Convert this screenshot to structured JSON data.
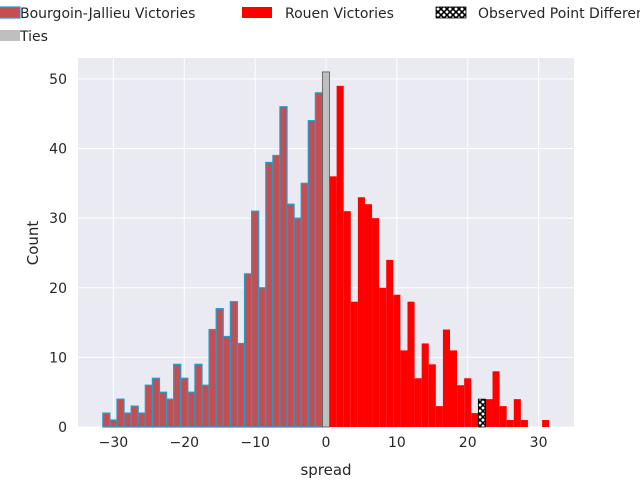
{
  "chart_data": {
    "type": "bar",
    "title": "",
    "xlabel": "spread",
    "ylabel": "Count",
    "xlim": [
      -35,
      35
    ],
    "ylim": [
      0,
      53
    ],
    "xticks": [
      -30,
      -20,
      -10,
      0,
      10,
      20,
      30
    ],
    "yticks": [
      0,
      10,
      20,
      30,
      40,
      50
    ],
    "xtick_labels": [
      "−30",
      "−20",
      "−10",
      "0",
      "10",
      "20",
      "30"
    ],
    "ytick_labels": [
      "0",
      "10",
      "20",
      "30",
      "40",
      "50"
    ],
    "grid": true,
    "legend_placement": "top",
    "colors": {
      "background": "#eaeaf2",
      "grid": "#ffffff",
      "bourgoin_fill": "#c44e52",
      "bourgoin_edge": "#1f9fd0",
      "rouen_fill": "#ff0000",
      "ties_fill": "#bfbfbf",
      "observed_fill": "#000000"
    },
    "legend": [
      {
        "label": "Bourgoin-Jallieu Victories",
        "key": "bourgoin"
      },
      {
        "label": "Rouen Victories",
        "key": "rouen"
      },
      {
        "label": "Observed Point Differential",
        "key": "observed"
      },
      {
        "label": "Ties",
        "key": "ties"
      }
    ],
    "series": [
      {
        "name": "Bourgoin-Jallieu Victories",
        "x": [
          -31,
          -30,
          -29,
          -28,
          -27,
          -26,
          -25,
          -24,
          -23,
          -22,
          -21,
          -20,
          -19,
          -18,
          -17,
          -16,
          -15,
          -14,
          -13,
          -12,
          -11,
          -10,
          -9,
          -8,
          -7,
          -6,
          -5,
          -4,
          -3,
          -2,
          -1
        ],
        "values": [
          2,
          1,
          4,
          2,
          3,
          2,
          6,
          7,
          5,
          4,
          9,
          7,
          5,
          9,
          6,
          14,
          17,
          13,
          18,
          12,
          22,
          31,
          20,
          38,
          39,
          46,
          32,
          30,
          35,
          44,
          48
        ]
      },
      {
        "name": "Ties",
        "x": [
          0
        ],
        "values": [
          51
        ]
      },
      {
        "name": "Rouen Victories",
        "x": [
          1,
          2,
          3,
          4,
          5,
          6,
          7,
          8,
          9,
          10,
          11,
          12,
          13,
          14,
          15,
          16,
          17,
          18,
          19,
          20,
          21,
          22,
          23,
          24,
          25,
          26,
          27,
          28,
          29,
          30,
          31
        ],
        "values": [
          36,
          49,
          31,
          18,
          33,
          32,
          30,
          20,
          24,
          19,
          11,
          18,
          7,
          12,
          9,
          3,
          14,
          11,
          6,
          7,
          2,
          4,
          4,
          8,
          3,
          1,
          4,
          1,
          0,
          0,
          1
        ]
      },
      {
        "name": "Observed Point Differential",
        "x": [
          22
        ],
        "values": [
          4
        ]
      }
    ]
  }
}
